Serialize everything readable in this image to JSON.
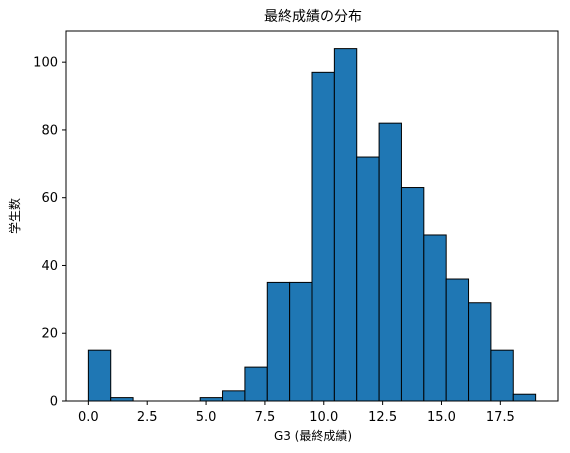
{
  "chart_data": {
    "type": "bar",
    "title": "最終成績の分布",
    "xlabel": "G3 (最終成績)",
    "ylabel": "学生数",
    "bar_color": "#1f77b4",
    "edge_color": "#000000",
    "xlim": [
      -0.95,
      19.95
    ],
    "ylim": [
      0,
      109.2
    ],
    "x_ticks": [
      0.0,
      2.5,
      5.0,
      7.5,
      10.0,
      12.5,
      15.0,
      17.5
    ],
    "x_tick_labels": [
      "0.0",
      "2.5",
      "5.0",
      "7.5",
      "10.0",
      "12.5",
      "15.0",
      "17.5"
    ],
    "y_ticks": [
      0,
      20,
      40,
      60,
      80,
      100
    ],
    "y_tick_labels": [
      "0",
      "20",
      "40",
      "60",
      "80",
      "100"
    ],
    "bins": [
      {
        "x0": 0.0,
        "x1": 0.95,
        "value": 15
      },
      {
        "x0": 0.95,
        "x1": 1.9,
        "value": 1
      },
      {
        "x0": 1.9,
        "x1": 2.85,
        "value": 0
      },
      {
        "x0": 2.85,
        "x1": 3.8,
        "value": 0
      },
      {
        "x0": 3.8,
        "x1": 4.75,
        "value": 0
      },
      {
        "x0": 4.75,
        "x1": 5.7,
        "value": 1
      },
      {
        "x0": 5.7,
        "x1": 6.65,
        "value": 3
      },
      {
        "x0": 6.65,
        "x1": 7.6,
        "value": 10
      },
      {
        "x0": 7.6,
        "x1": 8.55,
        "value": 35
      },
      {
        "x0": 8.55,
        "x1": 9.5,
        "value": 35
      },
      {
        "x0": 9.5,
        "x1": 10.45,
        "value": 97
      },
      {
        "x0": 10.45,
        "x1": 11.4,
        "value": 104
      },
      {
        "x0": 11.4,
        "x1": 12.35,
        "value": 72
      },
      {
        "x0": 12.35,
        "x1": 13.3,
        "value": 82
      },
      {
        "x0": 13.3,
        "x1": 14.25,
        "value": 63
      },
      {
        "x0": 14.25,
        "x1": 15.2,
        "value": 49
      },
      {
        "x0": 15.2,
        "x1": 16.15,
        "value": 36
      },
      {
        "x0": 16.15,
        "x1": 17.1,
        "value": 29
      },
      {
        "x0": 17.1,
        "x1": 18.05,
        "value": 15
      },
      {
        "x0": 18.05,
        "x1": 19.0,
        "value": 2
      }
    ]
  }
}
